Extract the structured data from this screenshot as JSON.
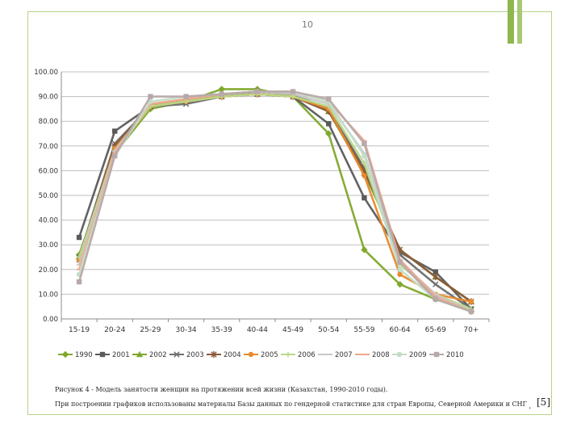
{
  "slide": {
    "number": "10"
  },
  "chart_data": {
    "type": "line",
    "title": "",
    "xlabel": "",
    "ylabel": "",
    "ylim": [
      0,
      100
    ],
    "y_ticks": [
      "0.00",
      "10.00",
      "20.00",
      "30.00",
      "40.00",
      "50.00",
      "60.00",
      "70.00",
      "80.00",
      "90.00",
      "100.00"
    ],
    "grid": true,
    "legend_position": "bottom",
    "categories": [
      "15-19",
      "20-24",
      "25-29",
      "30-34",
      "35-39",
      "40-44",
      "45-49",
      "50-54",
      "55-59",
      "60-64",
      "65-69",
      "70+"
    ],
    "series": [
      {
        "name": "1990",
        "color": "#7fa82c",
        "marker": "diamond",
        "values": [
          26,
          67,
          85,
          88,
          93,
          93,
          90,
          75,
          28,
          14,
          8,
          3
        ]
      },
      {
        "name": "2001",
        "color": "#5a5a5a",
        "marker": "square",
        "values": [
          33,
          76,
          86,
          88,
          90,
          91,
          90,
          79,
          49,
          27,
          19,
          4
        ]
      },
      {
        "name": "2002",
        "color": "#7fa82c",
        "marker": "triangle",
        "values": [
          25,
          70,
          87,
          88,
          91,
          92,
          91,
          84,
          59,
          28,
          17,
          7
        ]
      },
      {
        "name": "2003",
        "color": "#6e6e6e",
        "marker": "x",
        "values": [
          25,
          71,
          86,
          87,
          90,
          92,
          91,
          85,
          61,
          26,
          14,
          4
        ]
      },
      {
        "name": "2004",
        "color": "#8a5a3a",
        "marker": "star",
        "values": [
          24,
          70,
          86,
          88,
          90,
          91,
          90,
          84,
          60,
          28,
          17,
          7
        ]
      },
      {
        "name": "2005",
        "color": "#e8892e",
        "marker": "circle",
        "values": [
          24,
          69,
          86,
          88,
          90,
          91,
          90,
          85,
          58,
          18,
          10,
          7
        ]
      },
      {
        "name": "2006",
        "color": "#b8d98a",
        "marker": "plus",
        "values": [
          25,
          68,
          86,
          88,
          90,
          91,
          90,
          86,
          63,
          22,
          10,
          4
        ]
      },
      {
        "name": "2007",
        "color": "#c8c8c8",
        "marker": "dash",
        "values": [
          22,
          68,
          87,
          89,
          91,
          92,
          91,
          87,
          67,
          23,
          10,
          3
        ]
      },
      {
        "name": "2008",
        "color": "#f0a88c",
        "marker": "dash",
        "values": [
          20,
          67,
          87,
          89,
          91,
          92,
          92,
          88,
          72,
          24,
          9,
          3
        ]
      },
      {
        "name": "2009",
        "color": "#c3ddc8",
        "marker": "circle",
        "values": [
          18,
          66,
          88,
          90,
          91,
          92,
          92,
          88,
          66,
          20,
          8,
          3
        ]
      },
      {
        "name": "2010",
        "color": "#b8a9a9",
        "marker": "square",
        "values": [
          15,
          66,
          90,
          90,
          91,
          92,
          92,
          89,
          71,
          23,
          8,
          3
        ]
      }
    ]
  },
  "caption": {
    "line1": "Рисунок 4 - Модель занятости женщин на протяжении всей жизни (Казахстан, 1990-2010 годы).",
    "line2": "При построении графиков использованы материалы Базы данных по гендерной статистике для стран Европы, Северной Америки и СНГ",
    "dot": ".",
    "ref": "[5]"
  }
}
